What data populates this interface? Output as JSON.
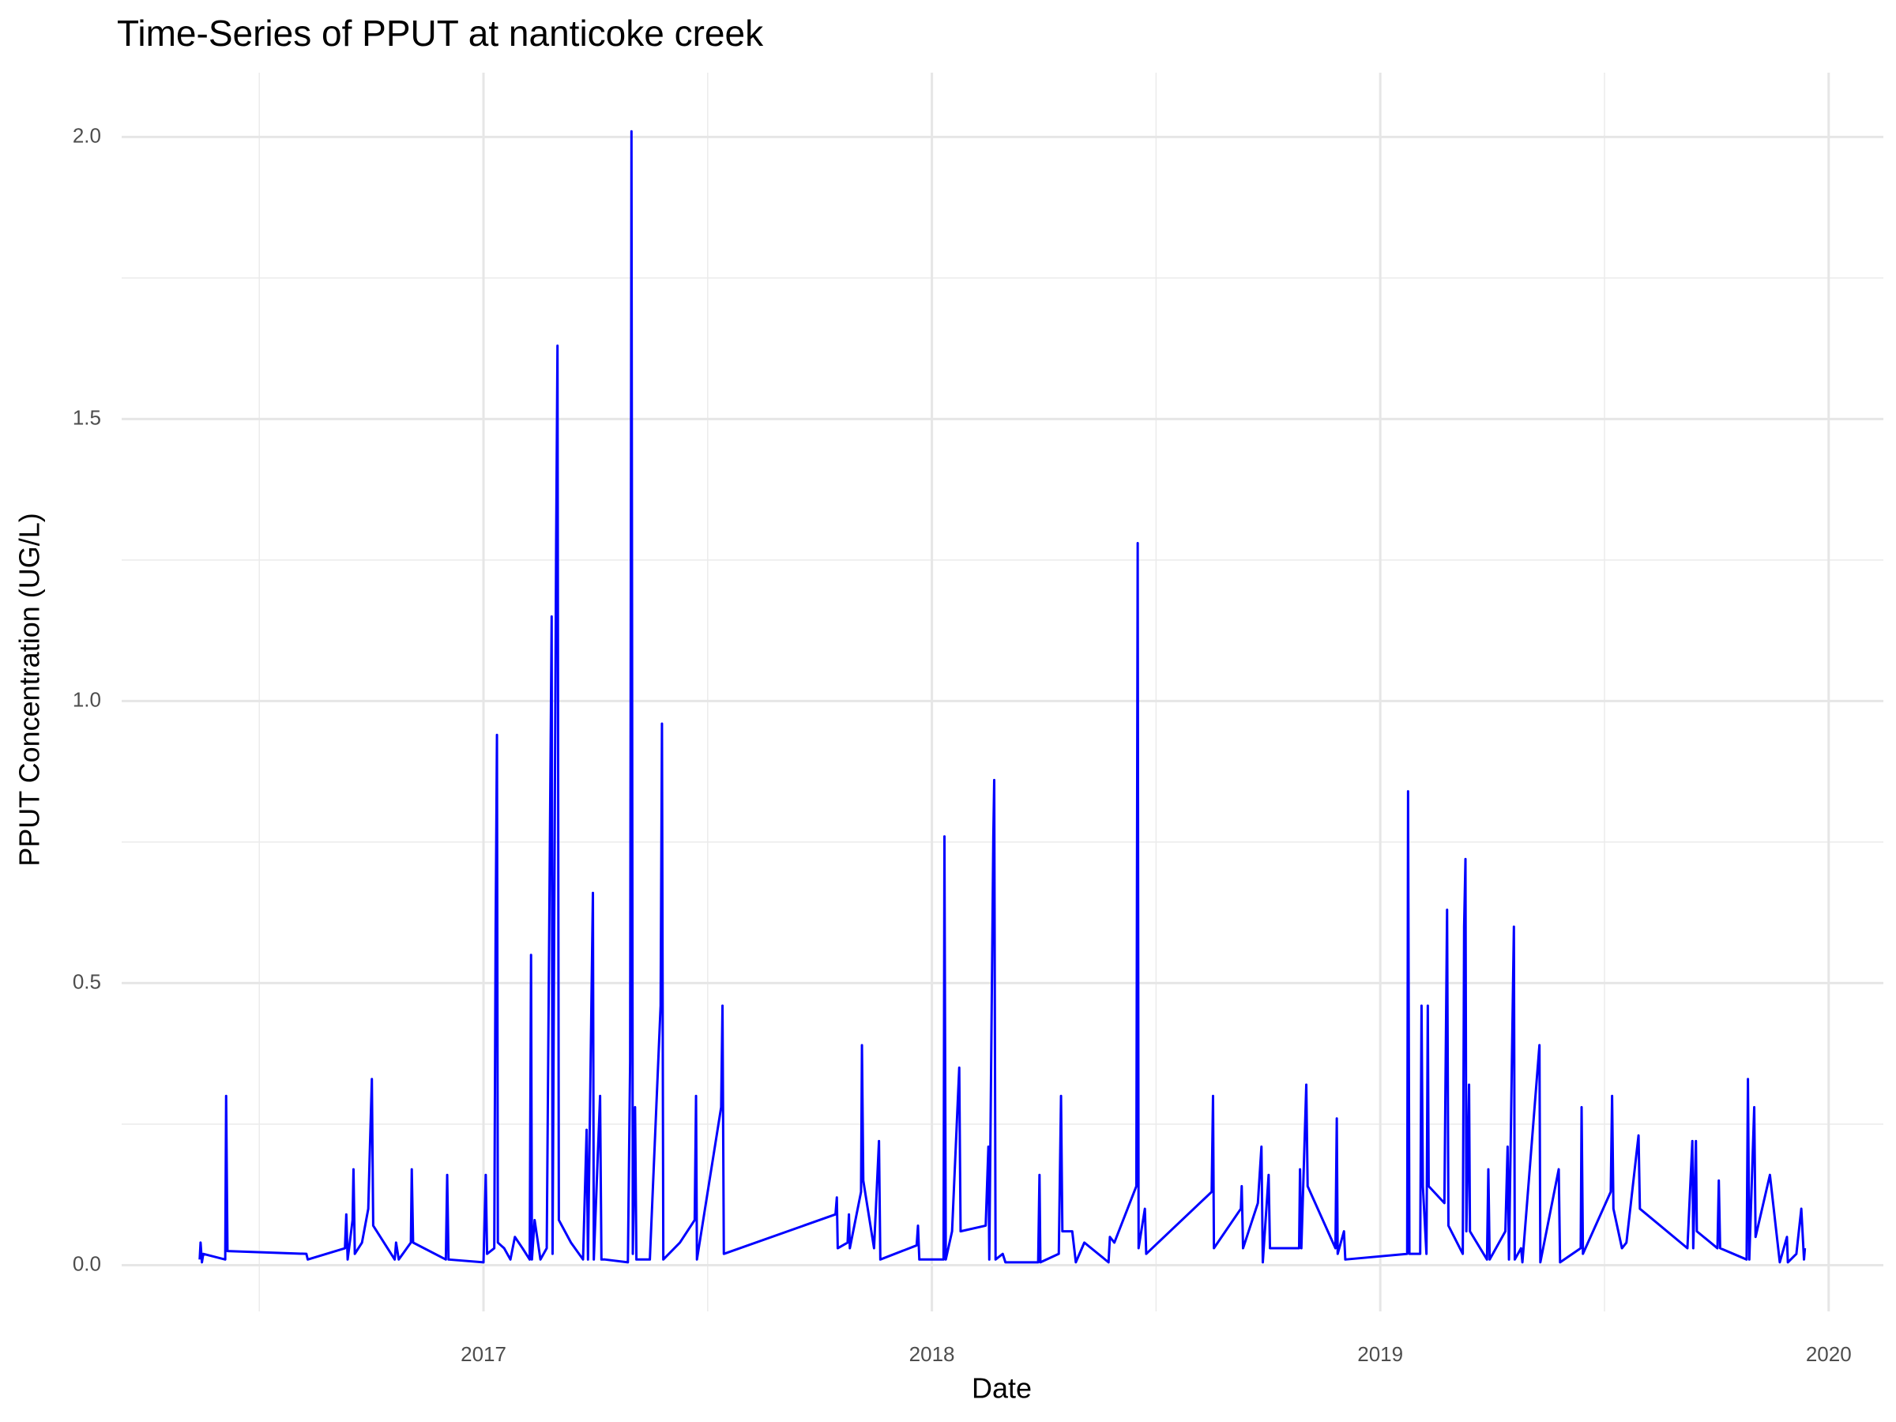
{
  "chart_data": {
    "type": "line",
    "title": "Time-Series of PPUT at nanticoke creek",
    "x_label": "Date",
    "y_label": "PPUT Concentration (UG/L)",
    "color": "#0000ff",
    "grid": true,
    "xlim": [
      2016.193,
      2020.122
    ],
    "xticks": [
      2017,
      2018,
      2019,
      2020
    ],
    "ylim": [
      -0.082,
      2.114
    ],
    "yticks": [
      {
        "value": 0,
        "label": "0.0"
      },
      {
        "value": 0.5,
        "label": "0.5"
      },
      {
        "value": 1,
        "label": "1.0"
      },
      {
        "value": 1.5,
        "label": "1.5"
      },
      {
        "value": 2,
        "label": "2.0"
      }
    ],
    "x": [
      2016.367,
      2016.369,
      2016.372,
      2016.375,
      2016.424,
      2016.426,
      2016.429,
      2016.605,
      2016.608,
      2016.691,
      2016.694,
      2016.697,
      2016.708,
      2016.71,
      2016.713,
      2016.729,
      2016.743,
      2016.746,
      2016.751,
      2016.754,
      2016.802,
      2016.805,
      2016.811,
      2016.838,
      2016.84,
      2016.843,
      2016.916,
      2016.919,
      2016.922,
      2017.0,
      2017.005,
      2017.008,
      2017.024,
      2017.027,
      2017.03,
      2017.032,
      2017.046,
      2017.06,
      2017.07,
      2017.087,
      2017.103,
      2017.106,
      2017.108,
      2017.114,
      2017.127,
      2017.141,
      2017.152,
      2017.154,
      2017.162,
      2017.165,
      2017.168,
      2017.195,
      2017.222,
      2017.23,
      2017.233,
      2017.244,
      2017.246,
      2017.26,
      2017.263,
      2017.271,
      2017.322,
      2017.327,
      2017.33,
      2017.333,
      2017.338,
      2017.341,
      2017.371,
      2017.395,
      2017.398,
      2017.401,
      2017.438,
      2017.471,
      2017.474,
      2017.476,
      2017.53,
      2017.533,
      2017.536,
      2017.785,
      2017.788,
      2017.79,
      2017.812,
      2017.815,
      2017.817,
      2017.842,
      2017.844,
      2017.847,
      2017.871,
      2017.882,
      2017.885,
      2017.966,
      2017.969,
      2017.972,
      2018.026,
      2018.028,
      2018.031,
      2018.045,
      2018.061,
      2018.064,
      2018.12,
      2018.126,
      2018.128,
      2018.137,
      2018.139,
      2018.142,
      2018.158,
      2018.164,
      2018.237,
      2018.24,
      2018.242,
      2018.283,
      2018.288,
      2018.291,
      2018.313,
      2018.321,
      2018.34,
      2018.394,
      2018.397,
      2018.407,
      2018.456,
      2018.459,
      2018.461,
      2018.475,
      2018.478,
      2018.624,
      2018.627,
      2018.629,
      2018.689,
      2018.691,
      2018.694,
      2018.727,
      2018.735,
      2018.738,
      2018.751,
      2018.754,
      2018.819,
      2018.821,
      2018.824,
      2018.835,
      2018.838,
      2018.9,
      2018.903,
      2018.905,
      2018.919,
      2018.922,
      2019.06,
      2019.062,
      2019.065,
      2019.089,
      2019.092,
      2019.095,
      2019.103,
      2019.106,
      2019.108,
      2019.143,
      2019.149,
      2019.152,
      2019.184,
      2019.187,
      2019.19,
      2019.192,
      2019.198,
      2019.2,
      2019.238,
      2019.241,
      2019.244,
      2019.279,
      2019.284,
      2019.287,
      2019.298,
      2019.3,
      2019.314,
      2019.317,
      2019.355,
      2019.357,
      2019.398,
      2019.401,
      2019.447,
      2019.449,
      2019.452,
      2019.514,
      2019.517,
      2019.52,
      2019.539,
      2019.549,
      2019.576,
      2019.579,
      2019.685,
      2019.696,
      2019.698,
      2019.704,
      2019.706,
      2019.752,
      2019.755,
      2019.758,
      2019.817,
      2019.82,
      2019.823,
      2019.834,
      2019.837,
      2019.869,
      2019.891,
      2019.907,
      2019.909,
      2019.928,
      2019.939,
      2019.945,
      2019.947
    ],
    "values": [
      0.01,
      0.04,
      0.005,
      0.02,
      0.01,
      0.3,
      0.025,
      0.02,
      0.01,
      0.03,
      0.09,
      0.01,
      0.08,
      0.17,
      0.02,
      0.04,
      0.1,
      0.19,
      0.33,
      0.07,
      0.01,
      0.04,
      0.01,
      0.04,
      0.17,
      0.04,
      0.01,
      0.16,
      0.01,
      0.005,
      0.16,
      0.02,
      0.03,
      0.59,
      0.94,
      0.04,
      0.03,
      0.01,
      0.05,
      0.03,
      0.01,
      0.55,
      0.01,
      0.08,
      0.01,
      0.03,
      1.15,
      0.02,
      1.28,
      1.63,
      0.08,
      0.04,
      0.01,
      0.24,
      0.01,
      0.66,
      0.01,
      0.3,
      0.01,
      0.01,
      0.005,
      0.36,
      2.01,
      0.02,
      0.28,
      0.01,
      0.01,
      0.46,
      0.96,
      0.01,
      0.04,
      0.08,
      0.3,
      0.01,
      0.28,
      0.46,
      0.02,
      0.09,
      0.12,
      0.03,
      0.04,
      0.09,
      0.03,
      0.13,
      0.39,
      0.15,
      0.03,
      0.22,
      0.01,
      0.035,
      0.07,
      0.01,
      0.01,
      0.76,
      0.01,
      0.06,
      0.35,
      0.06,
      0.07,
      0.21,
      0.01,
      0.76,
      0.86,
      0.01,
      0.02,
      0.005,
      0.005,
      0.16,
      0.005,
      0.02,
      0.3,
      0.06,
      0.06,
      0.005,
      0.04,
      0.005,
      0.05,
      0.04,
      0.14,
      1.28,
      0.03,
      0.1,
      0.02,
      0.13,
      0.3,
      0.03,
      0.1,
      0.14,
      0.03,
      0.11,
      0.21,
      0.005,
      0.16,
      0.03,
      0.03,
      0.17,
      0.03,
      0.32,
      0.14,
      0.03,
      0.26,
      0.02,
      0.06,
      0.01,
      0.02,
      0.84,
      0.02,
      0.02,
      0.46,
      0.14,
      0.02,
      0.46,
      0.14,
      0.11,
      0.63,
      0.07,
      0.02,
      0.6,
      0.72,
      0.06,
      0.32,
      0.06,
      0.01,
      0.17,
      0.01,
      0.06,
      0.21,
      0.01,
      0.6,
      0.01,
      0.03,
      0.005,
      0.39,
      0.005,
      0.17,
      0.005,
      0.03,
      0.28,
      0.02,
      0.13,
      0.3,
      0.1,
      0.03,
      0.04,
      0.23,
      0.1,
      0.03,
      0.22,
      0.03,
      0.22,
      0.06,
      0.03,
      0.15,
      0.03,
      0.01,
      0.33,
      0.01,
      0.28,
      0.05,
      0.16,
      0.005,
      0.05,
      0.005,
      0.02,
      0.1,
      0.01,
      0.03
    ]
  }
}
